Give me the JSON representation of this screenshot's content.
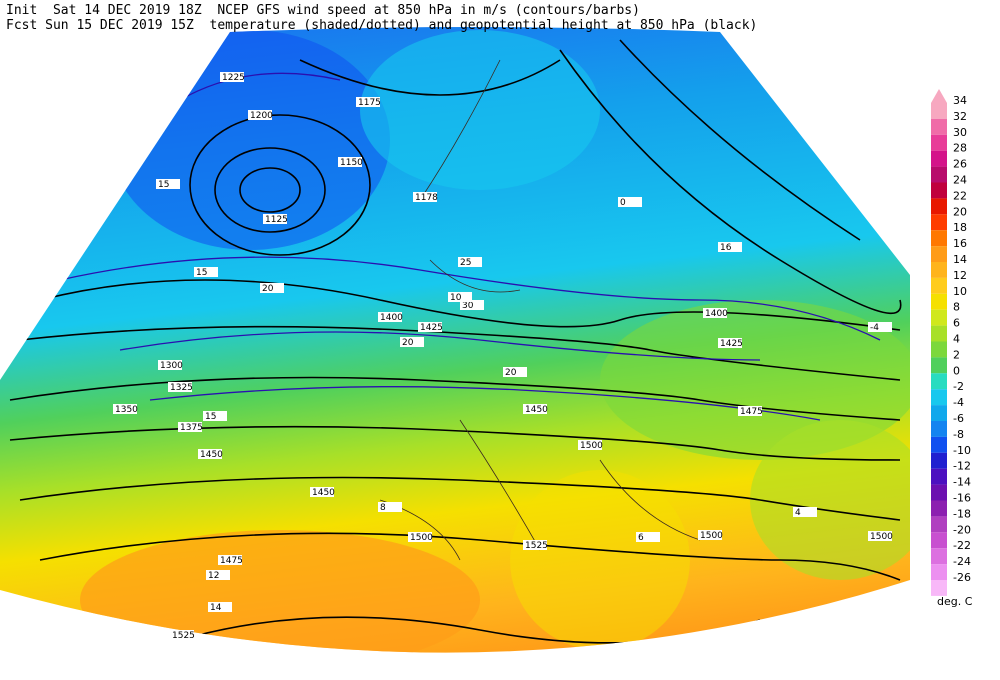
{
  "header": {
    "line1": "Init  Sat 14 DEC 2019 18Z  NCEP GFS wind speed at 850 hPa in m/s (contours/barbs)",
    "line2": "Fcst Sun 15 DEC 2019 15Z  temperature (shaded/dotted) and geopotential height at 850 hPa (black)"
  },
  "colorbar": {
    "units": "deg. C",
    "levels": [
      {
        "value": 34,
        "color": "#f7a8c0"
      },
      {
        "value": 32,
        "color": "#f06ca8"
      },
      {
        "value": 30,
        "color": "#e83c98"
      },
      {
        "value": 28,
        "color": "#d4148a"
      },
      {
        "value": 26,
        "color": "#b80c6c"
      },
      {
        "value": 24,
        "color": "#c0003c"
      },
      {
        "value": 22,
        "color": "#e81800"
      },
      {
        "value": 20,
        "color": "#ff3c00"
      },
      {
        "value": 18,
        "color": "#ff7800"
      },
      {
        "value": 16,
        "color": "#ff9c18"
      },
      {
        "value": 14,
        "color": "#ffb41c"
      },
      {
        "value": 12,
        "color": "#ffcc1c"
      },
      {
        "value": 10,
        "color": "#f5e000"
      },
      {
        "value": 8,
        "color": "#d0e81c"
      },
      {
        "value": 6,
        "color": "#a8e028"
      },
      {
        "value": 4,
        "color": "#7cd83c"
      },
      {
        "value": 2,
        "color": "#50d05c"
      },
      {
        "value": 0,
        "color": "#28dcc0"
      },
      {
        "value": -2,
        "color": "#18c8ee"
      },
      {
        "value": -4,
        "color": "#10a8ec"
      },
      {
        "value": -6,
        "color": "#1484f0"
      },
      {
        "value": -8,
        "color": "#1050f0"
      },
      {
        "value": -10,
        "color": "#2020d0"
      },
      {
        "value": -12,
        "color": "#4c10c0"
      },
      {
        "value": -14,
        "color": "#6c10b0"
      },
      {
        "value": -16,
        "color": "#8c20b0"
      },
      {
        "value": -18,
        "color": "#b040c0"
      },
      {
        "value": -20,
        "color": "#c850d0"
      },
      {
        "value": -22,
        "color": "#dc70e0"
      },
      {
        "value": -24,
        "color": "#ec90f0"
      },
      {
        "value": -26,
        "color": "#f8b8f8"
      }
    ]
  },
  "map_labels": [
    "1225",
    "1200",
    "1175",
    "1150",
    "1178",
    "1125",
    "1300",
    "1325",
    "1350",
    "1375",
    "1400",
    "1425",
    "1450",
    "1475",
    "1500",
    "1525",
    "1500",
    "1525",
    "1500",
    "1450",
    "1400",
    "1425",
    "1450",
    "1475",
    "1500",
    "15",
    "15",
    "20",
    "15",
    "20",
    "25",
    "30",
    "20",
    "12",
    "14",
    "16",
    "0",
    "-4",
    "4",
    "6",
    "8",
    "10"
  ]
}
